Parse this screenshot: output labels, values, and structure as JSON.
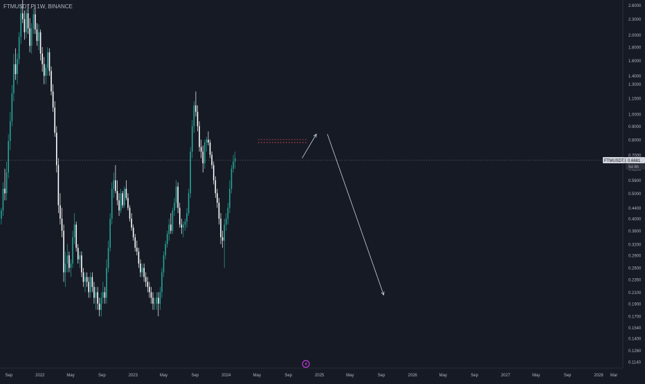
{
  "header": {
    "symbol_line": "FTMUSDT.P, 1W, BINANCE"
  },
  "colors": {
    "background": "#161a25",
    "up_candle": "#26a69a",
    "down_candle": "#ffffff",
    "axis_text": "#b2b5be",
    "grid_axis": "#2a2e39",
    "price_line": "#787b86",
    "red_dashed": "#ef5350",
    "projection": "#d1d4dc",
    "price_label_bg": "#d1d4dc",
    "price_label_text": "#131722",
    "tv_icon": "#e040fb"
  },
  "icons": {
    "bottom_center": "lightning-bolt-icon"
  },
  "chart_data": {
    "type": "candlestick",
    "symbol": "FTMUSDT.P",
    "timeframe": "1W",
    "exchange": "BINANCE",
    "y_scale": "log",
    "ylim": [
      0.108,
      2.72
    ],
    "xlim": [
      "2021-07-28",
      "2028-04-05"
    ],
    "y_ticks": [
      "2.6000",
      "2.3000",
      "2.0000",
      "1.8000",
      "1.6000",
      "1.4000",
      "1.3000",
      "1.1500",
      "1.0000",
      "0.9000",
      "0.8000",
      "0.7000",
      "0.6200",
      "0.5600",
      "0.5000",
      "0.4400",
      "0.4000",
      "0.3600",
      "0.3200",
      "0.2900",
      "0.2600",
      "0.2350",
      "0.2100",
      "0.1900",
      "0.1700",
      "0.1540",
      "0.1400",
      "0.1260",
      "0.1140"
    ],
    "x_ticks": [
      {
        "label": "Sep",
        "date": "2021-09-01"
      },
      {
        "label": "2022",
        "date": "2022-01-01"
      },
      {
        "label": "May",
        "date": "2022-05-01"
      },
      {
        "label": "Sep",
        "date": "2022-09-01"
      },
      {
        "label": "2023",
        "date": "2023-01-01"
      },
      {
        "label": "May",
        "date": "2023-05-01"
      },
      {
        "label": "Sep",
        "date": "2023-09-01"
      },
      {
        "label": "2024",
        "date": "2024-01-01"
      },
      {
        "label": "May",
        "date": "2024-05-01"
      },
      {
        "label": "Sep",
        "date": "2024-09-01"
      },
      {
        "label": "2025",
        "date": "2025-01-01"
      },
      {
        "label": "May",
        "date": "2025-05-01"
      },
      {
        "label": "Sep",
        "date": "2025-09-01"
      },
      {
        "label": "2026",
        "date": "2026-01-01"
      },
      {
        "label": "May",
        "date": "2026-05-01"
      },
      {
        "label": "Sep",
        "date": "2026-09-01"
      },
      {
        "label": "2027",
        "date": "2027-01-01"
      },
      {
        "label": "May",
        "date": "2027-05-01"
      },
      {
        "label": "Sep",
        "date": "2027-09-01"
      },
      {
        "label": "2028",
        "date": "2028-01-01"
      },
      {
        "label": "Mar",
        "date": "2028-03-01"
      }
    ],
    "current_price": {
      "label": "FTMUSDT.P",
      "value": 0.6681,
      "value_text": "0.6681",
      "countdown": "5d 6h"
    },
    "candles_start": "2021-08-02",
    "candles_interval_days": 7,
    "candles": [
      [
        0.4,
        0.44,
        0.38,
        0.43
      ],
      [
        0.43,
        0.55,
        0.41,
        0.52
      ],
      [
        0.52,
        0.62,
        0.47,
        0.5
      ],
      [
        0.5,
        0.66,
        0.47,
        0.6
      ],
      [
        0.6,
        0.84,
        0.57,
        0.79
      ],
      [
        0.79,
        1.02,
        0.73,
        0.94
      ],
      [
        0.94,
        1.29,
        0.9,
        1.2
      ],
      [
        1.2,
        1.7,
        1.12,
        1.55
      ],
      [
        1.55,
        1.78,
        1.35,
        1.42
      ],
      [
        1.42,
        1.7,
        1.3,
        1.62
      ],
      [
        1.62,
        2.05,
        1.55,
        1.97
      ],
      [
        1.97,
        2.62,
        1.85,
        2.42
      ],
      [
        2.42,
        2.72,
        2.22,
        2.3
      ],
      [
        2.3,
        2.48,
        1.92,
        2.05
      ],
      [
        2.05,
        2.52,
        1.95,
        2.42
      ],
      [
        2.42,
        2.62,
        2.02,
        2.12
      ],
      [
        2.12,
        2.32,
        1.72,
        1.82
      ],
      [
        1.82,
        2.22,
        1.7,
        2.12
      ],
      [
        2.12,
        2.52,
        2.02,
        2.4
      ],
      [
        2.4,
        2.62,
        2.02,
        2.1
      ],
      [
        2.1,
        2.22,
        1.82,
        1.9
      ],
      [
        1.9,
        2.2,
        1.75,
        2.05
      ],
      [
        2.05,
        2.1,
        1.6,
        1.7
      ],
      [
        1.7,
        1.8,
        1.45,
        1.55
      ],
      [
        1.55,
        1.65,
        1.3,
        1.4
      ],
      [
        1.4,
        1.55,
        1.3,
        1.5
      ],
      [
        1.5,
        1.8,
        1.4,
        1.72
      ],
      [
        1.72,
        1.78,
        1.4,
        1.46
      ],
      [
        1.46,
        1.52,
        1.18,
        1.22
      ],
      [
        1.22,
        1.3,
        1.02,
        1.06
      ],
      [
        1.06,
        1.12,
        0.82,
        0.85
      ],
      [
        0.85,
        0.9,
        0.6,
        0.64
      ],
      [
        0.64,
        0.68,
        0.42,
        0.45
      ],
      [
        0.45,
        0.5,
        0.38,
        0.4
      ],
      [
        0.4,
        0.44,
        0.34,
        0.36
      ],
      [
        0.36,
        0.38,
        0.23,
        0.25
      ],
      [
        0.25,
        0.3,
        0.22,
        0.27
      ],
      [
        0.27,
        0.32,
        0.25,
        0.29
      ],
      [
        0.29,
        0.3,
        0.25,
        0.26
      ],
      [
        0.26,
        0.28,
        0.24,
        0.27
      ],
      [
        0.27,
        0.36,
        0.26,
        0.34
      ],
      [
        0.34,
        0.42,
        0.32,
        0.38
      ],
      [
        0.38,
        0.39,
        0.3,
        0.31
      ],
      [
        0.31,
        0.32,
        0.27,
        0.28
      ],
      [
        0.28,
        0.3,
        0.26,
        0.29
      ],
      [
        0.29,
        0.3,
        0.24,
        0.25
      ],
      [
        0.25,
        0.26,
        0.22,
        0.23
      ],
      [
        0.23,
        0.25,
        0.21,
        0.24
      ],
      [
        0.24,
        0.25,
        0.22,
        0.23
      ],
      [
        0.23,
        0.24,
        0.2,
        0.21
      ],
      [
        0.21,
        0.25,
        0.2,
        0.24
      ],
      [
        0.24,
        0.25,
        0.21,
        0.22
      ],
      [
        0.22,
        0.23,
        0.19,
        0.2
      ],
      [
        0.2,
        0.22,
        0.18,
        0.21
      ],
      [
        0.21,
        0.22,
        0.18,
        0.19
      ],
      [
        0.19,
        0.2,
        0.17,
        0.18
      ],
      [
        0.18,
        0.21,
        0.17,
        0.2
      ],
      [
        0.2,
        0.23,
        0.19,
        0.21
      ],
      [
        0.21,
        0.22,
        0.19,
        0.2
      ],
      [
        0.2,
        0.28,
        0.19,
        0.26
      ],
      [
        0.26,
        0.33,
        0.25,
        0.31
      ],
      [
        0.31,
        0.42,
        0.3,
        0.4
      ],
      [
        0.4,
        0.55,
        0.38,
        0.52
      ],
      [
        0.52,
        0.6,
        0.48,
        0.56
      ],
      [
        0.56,
        0.64,
        0.5,
        0.51
      ],
      [
        0.51,
        0.56,
        0.45,
        0.47
      ],
      [
        0.47,
        0.5,
        0.41,
        0.43
      ],
      [
        0.43,
        0.52,
        0.42,
        0.5
      ],
      [
        0.5,
        0.51,
        0.44,
        0.45
      ],
      [
        0.45,
        0.53,
        0.44,
        0.52
      ],
      [
        0.52,
        0.56,
        0.47,
        0.48
      ],
      [
        0.48,
        0.5,
        0.43,
        0.44
      ],
      [
        0.44,
        0.45,
        0.39,
        0.4
      ],
      [
        0.4,
        0.42,
        0.36,
        0.37
      ],
      [
        0.37,
        0.38,
        0.33,
        0.34
      ],
      [
        0.34,
        0.35,
        0.3,
        0.31
      ],
      [
        0.31,
        0.33,
        0.29,
        0.3
      ],
      [
        0.3,
        0.31,
        0.26,
        0.27
      ],
      [
        0.27,
        0.28,
        0.24,
        0.25
      ],
      [
        0.25,
        0.27,
        0.24,
        0.26
      ],
      [
        0.26,
        0.27,
        0.23,
        0.24
      ],
      [
        0.24,
        0.25,
        0.22,
        0.23
      ],
      [
        0.23,
        0.24,
        0.21,
        0.22
      ],
      [
        0.22,
        0.23,
        0.2,
        0.21
      ],
      [
        0.21,
        0.22,
        0.19,
        0.2
      ],
      [
        0.2,
        0.21,
        0.18,
        0.19
      ],
      [
        0.19,
        0.2,
        0.18,
        0.19
      ],
      [
        0.19,
        0.21,
        0.18,
        0.2
      ],
      [
        0.2,
        0.21,
        0.17,
        0.19
      ],
      [
        0.19,
        0.22,
        0.18,
        0.21
      ],
      [
        0.21,
        0.26,
        0.2,
        0.25
      ],
      [
        0.25,
        0.3,
        0.24,
        0.29
      ],
      [
        0.29,
        0.33,
        0.28,
        0.32
      ],
      [
        0.32,
        0.36,
        0.31,
        0.35
      ],
      [
        0.35,
        0.4,
        0.33,
        0.38
      ],
      [
        0.38,
        0.42,
        0.35,
        0.36
      ],
      [
        0.36,
        0.44,
        0.35,
        0.43
      ],
      [
        0.43,
        0.48,
        0.41,
        0.46
      ],
      [
        0.46,
        0.56,
        0.44,
        0.53
      ],
      [
        0.53,
        0.55,
        0.42,
        0.44
      ],
      [
        0.44,
        0.46,
        0.37,
        0.38
      ],
      [
        0.38,
        0.4,
        0.35,
        0.37
      ],
      [
        0.37,
        0.39,
        0.34,
        0.38
      ],
      [
        0.38,
        0.4,
        0.36,
        0.39
      ],
      [
        0.39,
        0.44,
        0.37,
        0.42
      ],
      [
        0.42,
        0.52,
        0.41,
        0.5
      ],
      [
        0.5,
        0.75,
        0.48,
        0.72
      ],
      [
        0.72,
        0.95,
        0.68,
        0.9
      ],
      [
        0.9,
        1.12,
        0.85,
        1.08
      ],
      [
        1.08,
        1.22,
        0.98,
        1.02
      ],
      [
        1.02,
        1.08,
        0.86,
        0.9
      ],
      [
        0.9,
        0.94,
        0.72,
        0.75
      ],
      [
        0.75,
        0.8,
        0.68,
        0.72
      ],
      [
        0.72,
        0.76,
        0.6,
        0.65
      ],
      [
        0.65,
        0.8,
        0.62,
        0.78
      ],
      [
        0.78,
        0.82,
        0.72,
        0.8
      ],
      [
        0.8,
        0.86,
        0.76,
        0.78
      ],
      [
        0.78,
        0.8,
        0.68,
        0.7
      ],
      [
        0.7,
        0.72,
        0.62,
        0.64
      ],
      [
        0.64,
        0.66,
        0.54,
        0.56
      ],
      [
        0.56,
        0.58,
        0.48,
        0.5
      ],
      [
        0.5,
        0.52,
        0.44,
        0.46
      ],
      [
        0.46,
        0.48,
        0.38,
        0.4
      ],
      [
        0.4,
        0.42,
        0.32,
        0.34
      ],
      [
        0.34,
        0.36,
        0.31,
        0.33
      ],
      [
        0.33,
        0.4,
        0.26,
        0.38
      ],
      [
        0.38,
        0.42,
        0.36,
        0.4
      ],
      [
        0.4,
        0.46,
        0.38,
        0.44
      ],
      [
        0.44,
        0.56,
        0.42,
        0.52
      ],
      [
        0.52,
        0.64,
        0.5,
        0.62
      ],
      [
        0.62,
        0.7,
        0.6,
        0.66
      ],
      [
        0.66,
        0.72,
        0.62,
        0.68
      ]
    ],
    "annotations": {
      "red_dashed_levels": [
        0.8,
        0.78
      ],
      "red_dashed_span": [
        "2024-05-05",
        "2024-11-15"
      ],
      "projection_up": [
        {
          "date": "2024-10-25",
          "price": 0.68
        },
        {
          "date": "2024-12-20",
          "price": 0.84
        }
      ],
      "projection_down": [
        {
          "date": "2025-02-01",
          "price": 0.84
        },
        {
          "date": "2025-09-10",
          "price": 0.205
        }
      ]
    }
  }
}
